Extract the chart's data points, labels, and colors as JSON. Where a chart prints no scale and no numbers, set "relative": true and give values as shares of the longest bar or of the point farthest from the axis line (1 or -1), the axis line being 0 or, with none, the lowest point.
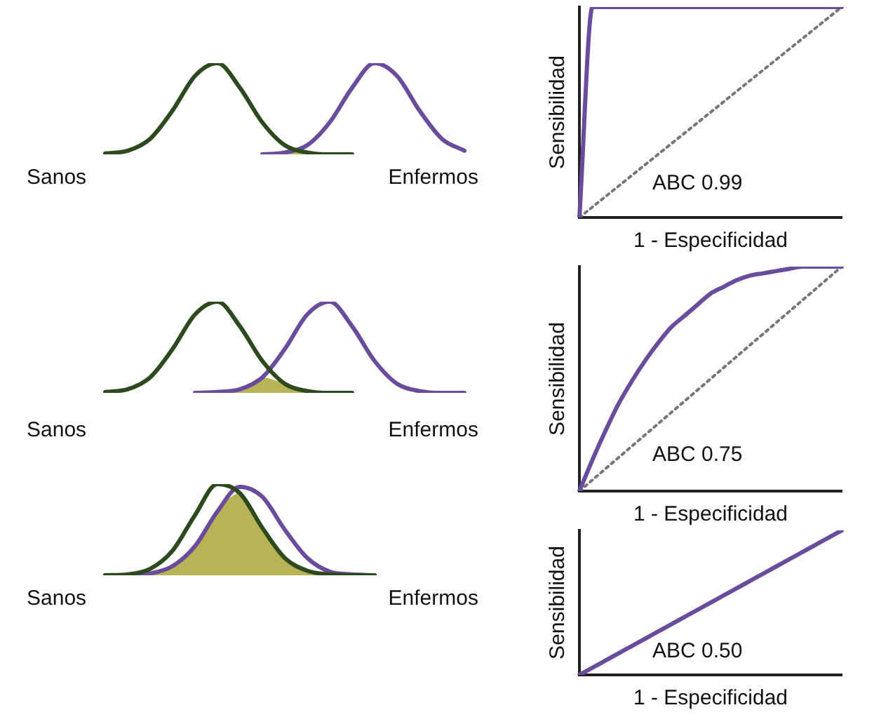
{
  "chart_data": [
    {
      "type": "line",
      "relative": true,
      "marker": "none",
      "categories": [
        null,
        null,
        null,
        null,
        null,
        null,
        null,
        null,
        null,
        null,
        null,
        null,
        null,
        null,
        null,
        null,
        null
      ],
      "series": [
        {
          "name": "Sanos",
          "color": "#2d4a1e",
          "values": [
            0.01,
            0.04,
            0.17,
            0.48,
            0.86,
            1,
            0.73,
            0.35,
            0.1,
            0.02,
            0,
            0,
            null,
            null,
            null,
            null,
            null
          ]
        },
        {
          "name": "Enfermos",
          "color": "#6a4c9c",
          "values": [
            null,
            null,
            null,
            null,
            null,
            null,
            null,
            0,
            0.02,
            0.1,
            0.35,
            0.73,
            1,
            0.86,
            0.48,
            0.17,
            0.04
          ]
        },
        {
          "type": "area",
          "color": "#b8b455",
          "values": [
            null,
            null,
            null,
            null,
            null,
            null,
            null,
            0,
            0.02,
            0.02,
            0,
            0,
            null,
            null,
            null,
            null,
            null
          ]
        }
      ]
    },
    {
      "type": "line",
      "relative": true,
      "marker": "none",
      "xlabel": "1 - Especificidad",
      "ylabel": "Sensibilidad",
      "annotations": [
        "ABC 0.99"
      ],
      "categories": [
        null,
        null,
        null,
        null,
        null,
        null,
        null,
        null,
        null,
        null,
        null,
        null,
        null,
        null,
        null,
        null,
        null,
        null,
        null,
        null,
        null
      ],
      "series": [
        {
          "color": "#6a4c9c",
          "values": [
            0,
            1,
            1,
            1,
            1,
            1,
            1,
            1,
            1,
            1,
            1,
            1,
            1,
            1,
            1,
            1,
            1,
            1,
            1,
            1,
            1
          ]
        },
        {
          "color": "#777777",
          "line_style": "dotted",
          "values": [
            0,
            0.05,
            0.1,
            0.15,
            0.2,
            0.25,
            0.3,
            0.35,
            0.4,
            0.45,
            0.5,
            0.55,
            0.6,
            0.65,
            0.7,
            0.75,
            0.8,
            0.85,
            0.9,
            0.95,
            1
          ]
        }
      ]
    },
    {
      "type": "line",
      "relative": true,
      "marker": "none",
      "categories": [
        null,
        null,
        null,
        null,
        null,
        null,
        null,
        null,
        null,
        null,
        null,
        null,
        null,
        null,
        null,
        null,
        null
      ],
      "series": [
        {
          "name": "Sanos",
          "color": "#2d4a1e",
          "values": [
            0.01,
            0.04,
            0.17,
            0.48,
            0.86,
            1,
            0.73,
            0.35,
            0.1,
            0.02,
            0,
            0,
            null,
            null,
            null,
            null,
            null
          ]
        },
        {
          "name": "Enfermos",
          "color": "#6a4c9c",
          "values": [
            null,
            null,
            null,
            null,
            0,
            0.01,
            0.04,
            0.17,
            0.48,
            0.86,
            1,
            0.73,
            0.35,
            0.1,
            0.02,
            0,
            0
          ]
        },
        {
          "type": "area",
          "color": "#b8b455",
          "values": [
            null,
            null,
            null,
            null,
            null,
            0.01,
            0.04,
            0.17,
            0.1,
            0.02,
            0,
            0,
            null,
            null,
            null,
            null,
            null
          ]
        }
      ]
    },
    {
      "type": "line",
      "relative": true,
      "marker": "none",
      "xlabel": "1 - Especificidad",
      "ylabel": "Sensibilidad",
      "annotations": [
        "ABC 0.75"
      ],
      "categories": [
        null,
        null,
        null,
        null,
        null,
        null,
        null,
        null,
        null,
        null,
        null,
        null,
        null,
        null,
        null,
        null,
        null,
        null,
        null,
        null,
        null
      ],
      "series": [
        {
          "color": "#6a4c9c",
          "values": [
            0,
            0.14,
            0.27,
            0.39,
            0.49,
            0.58,
            0.66,
            0.73,
            0.78,
            0.83,
            0.88,
            0.91,
            0.94,
            0.96,
            0.97,
            0.98,
            0.99,
            1,
            1,
            1,
            1
          ]
        },
        {
          "color": "#777777",
          "line_style": "dotted",
          "values": [
            0,
            0.05,
            0.1,
            0.15,
            0.2,
            0.25,
            0.3,
            0.35,
            0.4,
            0.45,
            0.5,
            0.55,
            0.6,
            0.65,
            0.7,
            0.75,
            0.8,
            0.85,
            0.9,
            0.95,
            1
          ]
        }
      ]
    },
    {
      "type": "line",
      "relative": true,
      "marker": "none",
      "categories": [
        null,
        null,
        null,
        null,
        null,
        null,
        null,
        null,
        null,
        null,
        null,
        null,
        null,
        null,
        null,
        null,
        null
      ],
      "series": [
        {
          "name": "Sanos",
          "color": "#2d4a1e",
          "values": [
            0,
            0.01,
            0.07,
            0.27,
            0.66,
            1,
            0.9,
            0.52,
            0.19,
            0.05,
            0.01,
            0,
            0,
            null,
            null,
            null,
            null
          ]
        },
        {
          "name": "Enfermos",
          "color": "#6a4c9c",
          "values": [
            0,
            0,
            0.02,
            0.1,
            0.32,
            0.7,
            0.97,
            0.86,
            0.5,
            0.19,
            0.04,
            0.01,
            0,
            null,
            null,
            null,
            null
          ]
        },
        {
          "type": "area",
          "color": "#b8b455",
          "values": [
            0,
            0,
            0.02,
            0.1,
            0.32,
            0.7,
            0.9,
            0.52,
            0.19,
            0.05,
            0.01,
            0,
            0,
            null,
            null,
            null,
            null
          ]
        }
      ]
    },
    {
      "type": "line",
      "relative": true,
      "marker": "none",
      "xlabel": "1 - Especificidad",
      "ylabel": "Sensibilidad",
      "annotations": [
        "ABC 0.50"
      ],
      "categories": [
        null,
        null,
        null,
        null,
        null,
        null,
        null,
        null,
        null,
        null,
        null,
        null,
        null,
        null,
        null,
        null,
        null,
        null,
        null,
        null,
        null
      ],
      "series": [
        {
          "color": "#6a4c9c",
          "values": [
            0,
            0.05,
            0.1,
            0.15,
            0.2,
            0.25,
            0.3,
            0.35,
            0.4,
            0.45,
            0.5,
            0.55,
            0.6,
            0.65,
            0.7,
            0.75,
            0.8,
            0.85,
            0.9,
            0.95,
            1
          ]
        }
      ]
    }
  ]
}
